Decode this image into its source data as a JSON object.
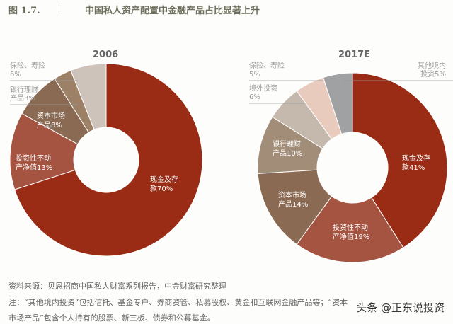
{
  "header": {
    "figure": "图 1.7.",
    "title": "中国私人资产配置中金融产品占比显著上升"
  },
  "chart_data": [
    {
      "type": "pie",
      "title": "2006",
      "categories": [
        "现金及存款",
        "投资性不动产净值",
        "资本市场产品",
        "银行理财产品",
        "保险、寿险"
      ],
      "labels": [
        "现金及存\n款70%",
        "投资性不动\n产净值13%",
        "资本市场\n产品8%",
        "银行理财\n产品3%",
        "保险、寿险\n6%"
      ],
      "values": [
        70,
        13,
        8,
        3,
        6
      ],
      "colors": [
        "#9a2b15",
        "#a55441",
        "#8a6a52",
        "#9d8167",
        "#cdc3ba"
      ]
    },
    {
      "type": "pie",
      "title": "2017E",
      "categories": [
        "现金及存款",
        "投资性不动产净值",
        "资本市场产品",
        "银行理财产品",
        "境外投资",
        "保险、寿险",
        "其他境内投资"
      ],
      "labels": [
        "现金及存\n款41%",
        "投资性不动\n产净值19%",
        "资本市场\n产品14%",
        "银行理财\n产品10%",
        "境外投资\n6%",
        "保险、寿险\n5%",
        "其他境内\n投资5%"
      ],
      "values": [
        41,
        19,
        14,
        10,
        6,
        5,
        5
      ],
      "colors": [
        "#9a2b15",
        "#a55441",
        "#8a6a52",
        "#a28d78",
        "#c5b8ad",
        "#e8cbbd",
        "#9fa1a3"
      ]
    }
  ],
  "footer": {
    "source": "资料来源：贝恩招商中国私人财富系列报告，中金财富研究整理",
    "note1": "注：“其他境内投资”包括信托、基金专户、券商资管、私募股权、黄金和互联网金融产品等；“资本",
    "note2": "市场产品”包含个人持有的股票、新三板、债券和公募基金。",
    "watermark": "头条 @正东说投资"
  }
}
